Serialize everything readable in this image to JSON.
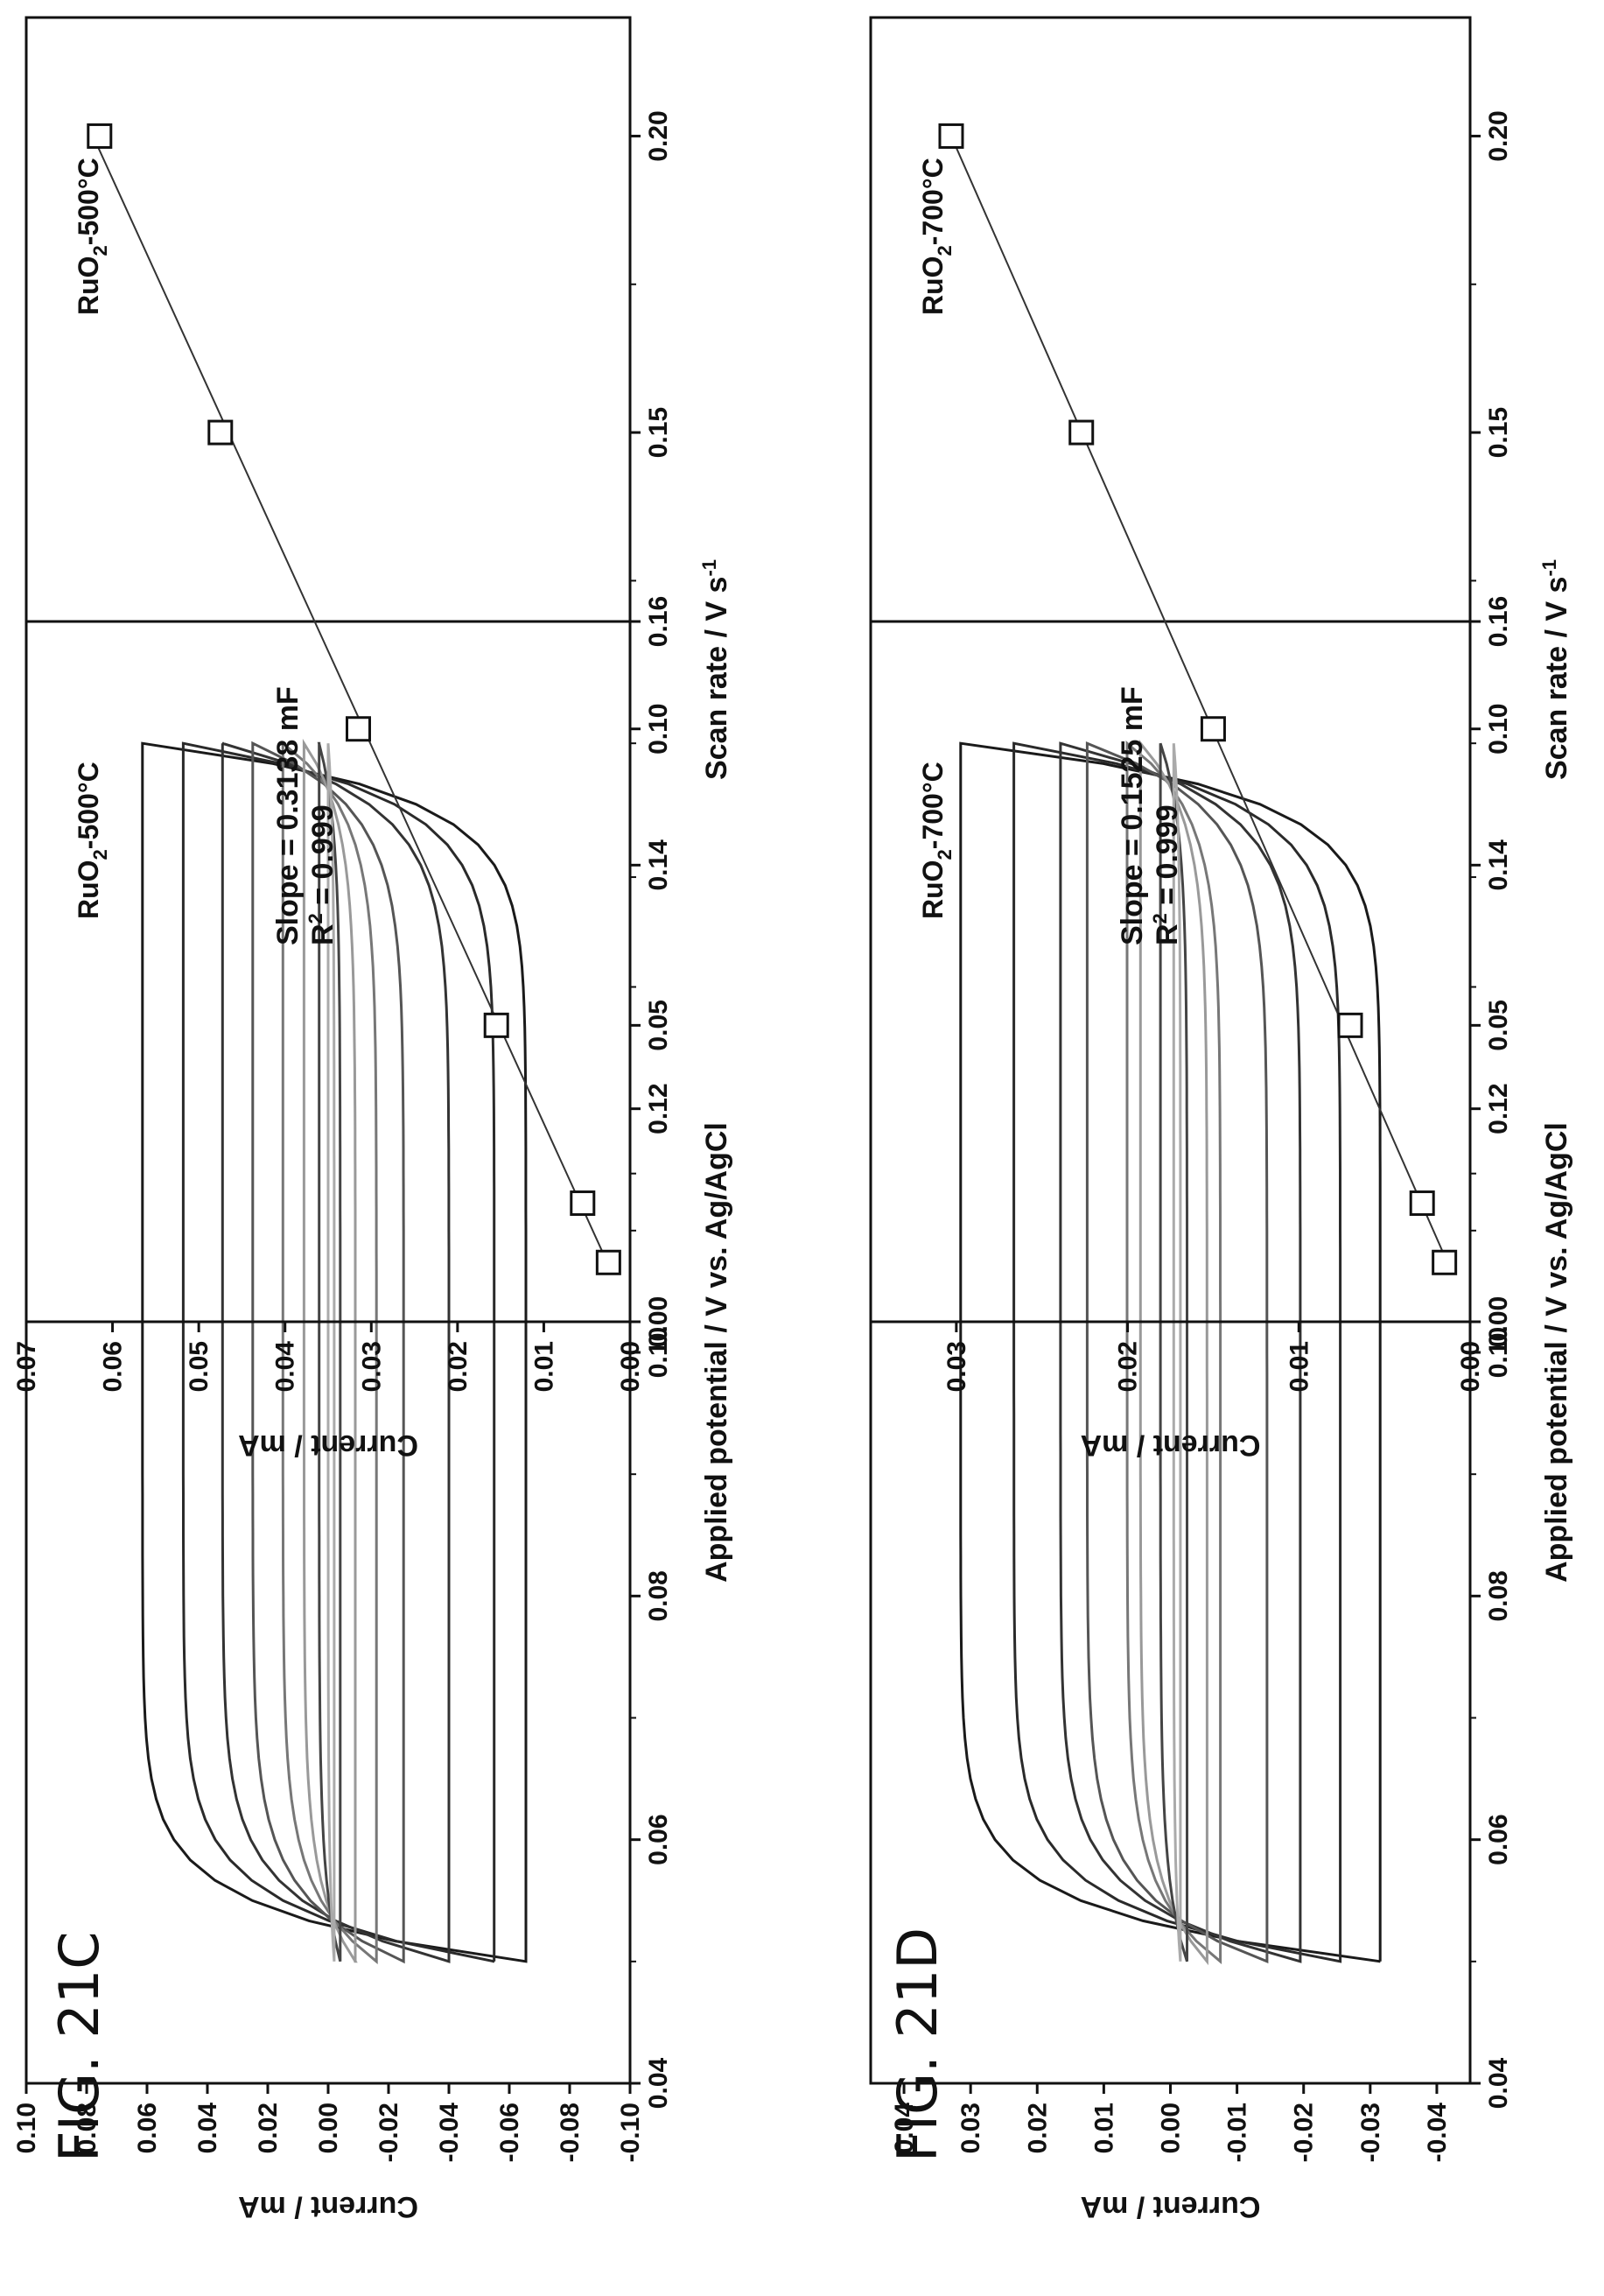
{
  "figures": [
    {
      "label": "FIG. 21C"
    },
    {
      "label": "FIG. 21D"
    }
  ],
  "chart_data": [
    {
      "id": "cv-500",
      "type": "line",
      "panel_label": {
        "main": "RuO",
        "sub": "2",
        "rest": "-500°C"
      },
      "xlabel": "Applied potential / V vs. Ag/AgCl",
      "ylabel": "Current / mA",
      "xlim": [
        0.04,
        0.16
      ],
      "ylim": [
        -0.1,
        0.1
      ],
      "xticks": [
        "0.04",
        "0.06",
        "0.08",
        "0.10",
        "0.12",
        "0.14",
        "0.16"
      ],
      "yticks": [
        "0.10",
        "0.08",
        "0.06",
        "0.04",
        "0.02",
        "0.00",
        "-0.02",
        "-0.04",
        "-0.06",
        "-0.08",
        "-0.10"
      ],
      "x_start": 0.05,
      "x_end": 0.15,
      "loops": [
        {
          "scan_rate": 0.2,
          "upper": 0.0615,
          "lower": -0.0655,
          "color": "#1a1a1a"
        },
        {
          "scan_rate": 0.15,
          "upper": 0.048,
          "lower": -0.055,
          "color": "#2a2a2a"
        },
        {
          "scan_rate": 0.1,
          "upper": 0.035,
          "lower": -0.04,
          "color": "#333333"
        },
        {
          "scan_rate": 0.08,
          "upper": 0.025,
          "lower": -0.025,
          "color": "#555555"
        },
        {
          "scan_rate": 0.05,
          "upper": 0.015,
          "lower": -0.016,
          "color": "#777777"
        },
        {
          "scan_rate": 0.04,
          "upper": 0.008,
          "lower": -0.009,
          "color": "#999999"
        },
        {
          "scan_rate": 0.02,
          "upper": 0.003,
          "lower": -0.004,
          "color": "#444444"
        },
        {
          "scan_rate": 0.01,
          "upper": 0.0,
          "lower": -0.002,
          "color": "#aaaaaa"
        }
      ]
    },
    {
      "id": "fit-500",
      "type": "scatter",
      "panel_label": {
        "main": "RuO",
        "sub": "2",
        "rest": "-500°C"
      },
      "xlabel": "Scan rate / V s",
      "xlabel_sup": "-1",
      "ylabel": "Current / mA",
      "xlim": [
        0.0,
        0.22
      ],
      "ylim": [
        0.0,
        0.07
      ],
      "xticks": [
        "0.00",
        "0.05",
        "0.10",
        "0.15",
        "0.20"
      ],
      "yticks": [
        "0.07",
        "0.06",
        "0.05",
        "0.04",
        "0.03",
        "0.02",
        "0.01",
        "0.00"
      ],
      "x": [
        0.01,
        0.02,
        0.05,
        0.1,
        0.15,
        0.2
      ],
      "y": [
        0.0025,
        0.0055,
        0.0155,
        0.0315,
        0.0475,
        0.0615
      ],
      "fit": {
        "slope": 0.3138,
        "intercept": -0.0005
      },
      "annotation_slope": "Slope = 0.3138 mF",
      "annotation_r2": {
        "main": "R",
        "sup": "2",
        "rest": " = 0.999"
      }
    },
    {
      "id": "cv-700",
      "type": "line",
      "panel_label": {
        "main": "RuO",
        "sub": "2",
        "rest": "-700°C"
      },
      "xlabel": "Applied potential / V vs. Ag/AgCl",
      "ylabel": "Current / mA",
      "xlim": [
        0.04,
        0.16
      ],
      "ylim": [
        -0.045,
        0.045
      ],
      "xticks": [
        "0.04",
        "0.06",
        "0.08",
        "0.10",
        "0.12",
        "0.14",
        "0.16"
      ],
      "yticks": [
        "0.04",
        "0.03",
        "0.02",
        "0.01",
        "0.00",
        "-0.01",
        "-0.02",
        "-0.03",
        "-0.04"
      ],
      "x_start": 0.05,
      "x_end": 0.15,
      "loops": [
        {
          "scan_rate": 0.2,
          "upper": 0.0315,
          "lower": -0.0315,
          "color": "#1a1a1a"
        },
        {
          "scan_rate": 0.15,
          "upper": 0.0235,
          "lower": -0.0255,
          "color": "#2a2a2a"
        },
        {
          "scan_rate": 0.1,
          "upper": 0.0165,
          "lower": -0.0195,
          "color": "#333333"
        },
        {
          "scan_rate": 0.08,
          "upper": 0.0125,
          "lower": -0.0145,
          "color": "#555555"
        },
        {
          "scan_rate": 0.05,
          "upper": 0.0065,
          "lower": -0.0075,
          "color": "#777777"
        },
        {
          "scan_rate": 0.04,
          "upper": 0.0045,
          "lower": -0.0055,
          "color": "#999999"
        },
        {
          "scan_rate": 0.02,
          "upper": 0.0015,
          "lower": -0.0025,
          "color": "#444444"
        },
        {
          "scan_rate": 0.01,
          "upper": -0.0005,
          "lower": -0.0015,
          "color": "#aaaaaa"
        }
      ]
    },
    {
      "id": "fit-700",
      "type": "scatter",
      "panel_label": {
        "main": "RuO",
        "sub": "2",
        "rest": "-700°C"
      },
      "xlabel": "Scan rate / V s",
      "xlabel_sup": "-1",
      "ylabel": "Current / mA",
      "xlim": [
        0.0,
        0.22
      ],
      "ylim": [
        0.0,
        0.035
      ],
      "xticks": [
        "0.00",
        "0.05",
        "0.10",
        "0.15",
        "0.20"
      ],
      "yticks": [
        "0.03",
        "0.02",
        "0.01",
        "0.00"
      ],
      "x": [
        0.01,
        0.02,
        0.05,
        0.1,
        0.15,
        0.2
      ],
      "y": [
        0.0015,
        0.0028,
        0.007,
        0.015,
        0.0227,
        0.0303
      ],
      "fit": {
        "slope": 0.1525,
        "intercept": -0.0002
      },
      "annotation_slope": "Slope = 0.1525 mF",
      "annotation_r2": {
        "main": "R",
        "sup": "2",
        "rest": " = 0.999"
      }
    }
  ]
}
